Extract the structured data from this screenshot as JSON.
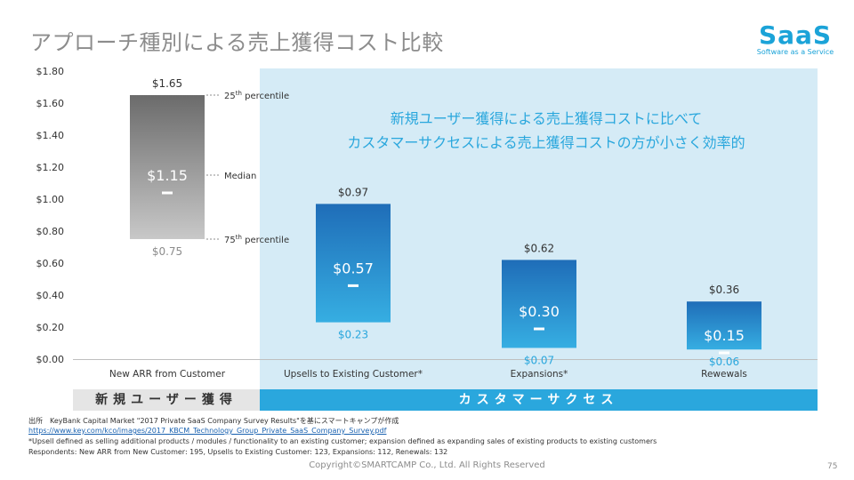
{
  "page": {
    "title": "アプローチ種別による売上獲得コスト比較",
    "copyright": "Copyright©SMARTCAMP Co., Ltd. All Rights Reserved",
    "page_number": "75"
  },
  "logo": {
    "main": "SaaS",
    "sub": "Software as a Service"
  },
  "colors": {
    "highlight_bg": "#d5ebf6",
    "blue_bar_top": "#1f6db8",
    "blue_bar_bottom": "#36aee2",
    "gray_bar_top": "#6b6b6b",
    "gray_bar_bottom": "#c8c8c8",
    "annotation_text": "#2aa7dd",
    "category_cs": "#2aa7dd",
    "category_new": "#e5e5e5"
  },
  "chart_data": {
    "type": "bar",
    "subtype": "range (25th–75th percentile) with median",
    "ylim": [
      0,
      1.8
    ],
    "yticks": [
      "$1.80",
      "$1.60",
      "$1.40",
      "$1.20",
      "$1.00",
      "$0.80",
      "$0.60",
      "$0.40",
      "$0.20",
      "$0.00"
    ],
    "ytick_values": [
      1.8,
      1.6,
      1.4,
      1.2,
      1.0,
      0.8,
      0.6,
      0.4,
      0.2,
      0.0
    ],
    "categories": [
      "New ARR from Customer",
      "Upsells to Existing Customer*",
      "Expansions*",
      "Rewewals"
    ],
    "high": [
      1.65,
      0.97,
      0.62,
      0.36
    ],
    "median": [
      1.15,
      0.57,
      0.3,
      0.15
    ],
    "low": [
      0.75,
      0.23,
      0.07,
      0.06
    ],
    "high_labels": [
      "$1.65",
      "$0.97",
      "$0.62",
      "$0.36"
    ],
    "median_labels": [
      "$1.15",
      "$0.57",
      "$0.30",
      "$0.15"
    ],
    "low_labels": [
      "$0.75",
      "$0.23",
      "$0.07",
      "$0.06"
    ],
    "percentile_labels": {
      "p25_base": "25",
      "p25_sup": "th",
      "p25_rest": " percentile",
      "median": "Median",
      "p75_base": "75",
      "p75_sup": "th",
      "p75_rest": " percentile"
    },
    "annotation": [
      "新規ユーザー獲得による売上獲得コストに比べて",
      "カスタマーサクセスによる売上獲得コストの方が小さく効率的"
    ],
    "groups": {
      "new": "新規ユーザー獲得",
      "cs": "カスタマーサクセス"
    }
  },
  "source": {
    "line1": "出所　KeyBank Capital Market \"2017 Private SaaS Company Survey Results\"を基にスマートキャンプが作成",
    "link": "https://www.key.com/kco/images/2017_KBCM_Technology_Group_Private_SaaS_Company_Survey.pdf",
    "line3": "*Upsell defined as selling additional products / modules / functionality to an existing customer; expansion defined as expanding sales of existing products to existing customers",
    "line4": "Respondents: New ARR from New Customer: 195, Upsells to Existing Customer: 123, Expansions: 112, Renewals: 132"
  }
}
